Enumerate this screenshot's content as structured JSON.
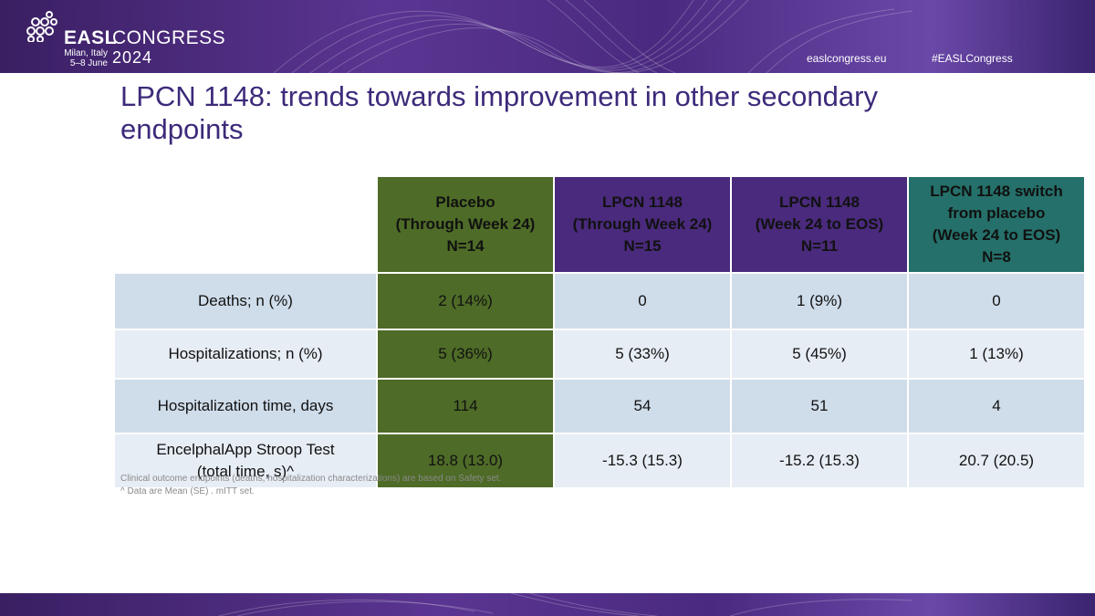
{
  "header": {
    "brand": "EASL",
    "event": "CONGRESS",
    "year": "2024",
    "location": "Milan, Italy",
    "dates": "5–8 June",
    "website": "easlcongress.eu",
    "hashtag": "#EASLCongress"
  },
  "slide": {
    "title": "LPCN 1148: trends towards improvement in other secondary endpoints"
  },
  "table": {
    "columns": [
      {
        "lines": [
          "Placebo",
          "(Through Week 24)",
          "N=14"
        ],
        "color": "#4e6b27"
      },
      {
        "lines": [
          "LPCN 1148",
          "(Through Week 24)",
          "N=15"
        ],
        "color": "#4a2a7c"
      },
      {
        "lines": [
          "LPCN 1148",
          "(Week 24 to EOS)",
          "N=11"
        ],
        "color": "#4a2a7c"
      },
      {
        "lines": [
          "LPCN 1148 switch",
          "from placebo",
          "(Week 24 to EOS)",
          "N=8"
        ],
        "color": "#25706a"
      }
    ],
    "rows": [
      {
        "label": [
          "Deaths; n (%)"
        ],
        "values": [
          "2 (14%)",
          "0",
          "1 (9%)",
          "0"
        ]
      },
      {
        "label": [
          "Hospitalizations; n (%)"
        ],
        "values": [
          "5 (36%)",
          "5 (33%)",
          "5 (45%)",
          "1 (13%)"
        ]
      },
      {
        "label": [
          "Hospitalization time, days"
        ],
        "values": [
          "114",
          "54",
          "51",
          "4"
        ]
      },
      {
        "label": [
          "EncelphalApp Stroop Test",
          "(total time, s)^"
        ],
        "values": [
          "18.8 (13.0)",
          "-15.3 (15.3)",
          "-15.2 (15.3)",
          "20.7 (20.5)"
        ]
      }
    ]
  },
  "footnotes": [
    "Clinical outcome endpoints (deaths, hospitalization characterizations) are based on Safety set.",
    "^ Data are Mean (SE) . mITT set."
  ]
}
